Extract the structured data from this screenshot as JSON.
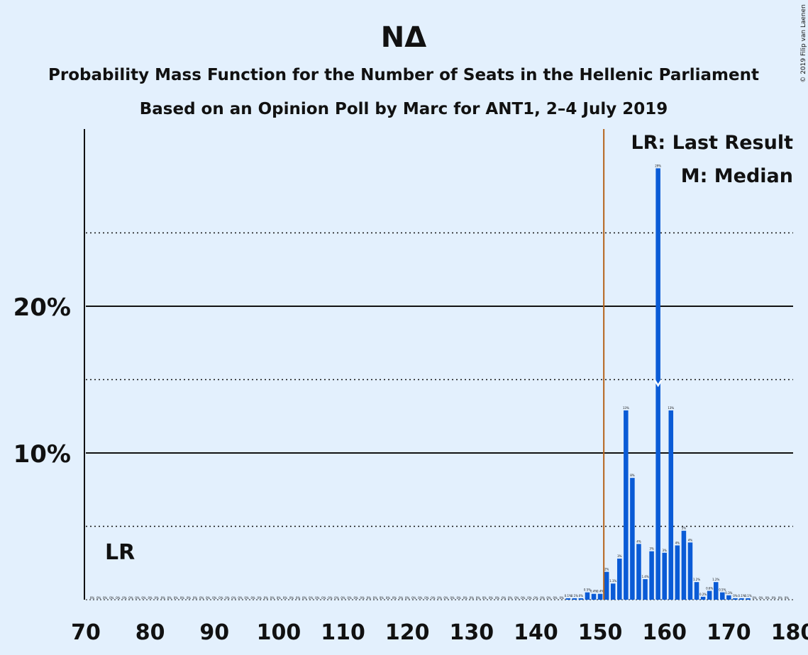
{
  "chart_data": {
    "type": "bar",
    "title": "ΝΔ",
    "subtitle_1": "Probability Mass Function for the Number of Seats in the Hellenic Parliament",
    "subtitle_2": "Based on an Opinion Poll by Marc for ANT1, 2–4 July 2019",
    "copyright": "© 2019 Filip van Laenen",
    "legend": {
      "position": "top-right",
      "entries": [
        "LR: Last Result",
        "M: Median"
      ]
    },
    "lr_label": "LR",
    "median_marker": "M",
    "xlim": [
      70,
      180
    ],
    "ylim": [
      0,
      32
    ],
    "x_ticks": [
      70,
      80,
      90,
      100,
      110,
      120,
      130,
      140,
      150,
      160,
      170,
      180
    ],
    "y_tick_labels": [
      {
        "value": 10,
        "label": "10%"
      },
      {
        "value": 20,
        "label": "20%"
      }
    ],
    "major_gridlines": [
      10,
      20
    ],
    "minor_gridlines": [
      5,
      15,
      25
    ],
    "last_result": 151,
    "median": 159,
    "colors": {
      "bar": "#0a5bd6",
      "last_result": "#b5651d",
      "background": "#e3f0fd"
    },
    "bars": [
      {
        "x": 145,
        "y": 0.1,
        "label": "0.1%"
      },
      {
        "x": 146,
        "y": 0.1,
        "label": "0.1%"
      },
      {
        "x": 147,
        "y": 0.1,
        "label": "0%"
      },
      {
        "x": 148,
        "y": 0.5,
        "label": "0.5%"
      },
      {
        "x": 149,
        "y": 0.4,
        "label": "0.4%"
      },
      {
        "x": 150,
        "y": 0.4,
        "label": "0.4%"
      },
      {
        "x": 151,
        "y": 1.9,
        "label": "2%"
      },
      {
        "x": 152,
        "y": 1.1,
        "label": "1.1%"
      },
      {
        "x": 153,
        "y": 2.8,
        "label": "3%"
      },
      {
        "x": 154,
        "y": 12.9,
        "label": "13%"
      },
      {
        "x": 155,
        "y": 8.3,
        "label": "8%"
      },
      {
        "x": 156,
        "y": 3.8,
        "label": "4%"
      },
      {
        "x": 157,
        "y": 1.4,
        "label": "1.4%"
      },
      {
        "x": 158,
        "y": 3.3,
        "label": "3%"
      },
      {
        "x": 159,
        "y": 29.4,
        "label": "29%"
      },
      {
        "x": 160,
        "y": 3.2,
        "label": "3%"
      },
      {
        "x": 161,
        "y": 12.9,
        "label": "13%"
      },
      {
        "x": 162,
        "y": 3.7,
        "label": "4%"
      },
      {
        "x": 163,
        "y": 4.7,
        "label": "5%"
      },
      {
        "x": 164,
        "y": 3.9,
        "label": "4%"
      },
      {
        "x": 165,
        "y": 1.2,
        "label": "1.2%"
      },
      {
        "x": 166,
        "y": 0.2,
        "label": "0.2%"
      },
      {
        "x": 167,
        "y": 0.6,
        "label": "0.6%"
      },
      {
        "x": 168,
        "y": 1.2,
        "label": "1.2%"
      },
      {
        "x": 169,
        "y": 0.5,
        "label": "0.5%"
      },
      {
        "x": 170,
        "y": 0.3,
        "label": "0.3%"
      },
      {
        "x": 171,
        "y": 0.1,
        "label": "0%"
      },
      {
        "x": 172,
        "y": 0.1,
        "label": "0.1%"
      },
      {
        "x": 173,
        "y": 0.1,
        "label": "0.1%"
      }
    ]
  }
}
